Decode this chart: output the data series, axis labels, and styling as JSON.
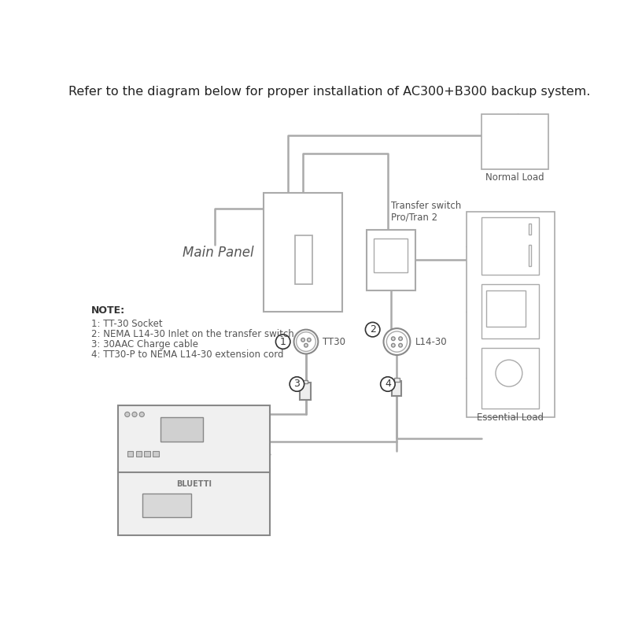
{
  "title": "Refer to the diagram below for proper installation of AC300+B300 backup system.",
  "title_fontsize": 11.5,
  "bg_color": "#ffffff",
  "line_color": "#b0b0b0",
  "text_color": "#333333",
  "note_title": "NOTE:",
  "notes": [
    "1: TT-30 Socket",
    "2: NEMA L14-30 Inlet on the transfer switch",
    "3: 30AAC Charge cable",
    "4: TT30-P to NEMA L14-30 extension cord"
  ],
  "labels": {
    "main_panel": "Main Panel",
    "transfer_switch": "Transfer switch\nPro/Tran 2",
    "tt30": "TT30",
    "l1430": "L14-30",
    "normal_load": "Normal Load",
    "essential_load": "Essential Load"
  },
  "colors": {
    "wire": "#aaaaaa",
    "box_edge": "#aaaaaa",
    "dark_edge": "#888888",
    "circle_num": "#333333",
    "main_panel_text": "#555555",
    "icon_fill": "#f5f5f5"
  }
}
